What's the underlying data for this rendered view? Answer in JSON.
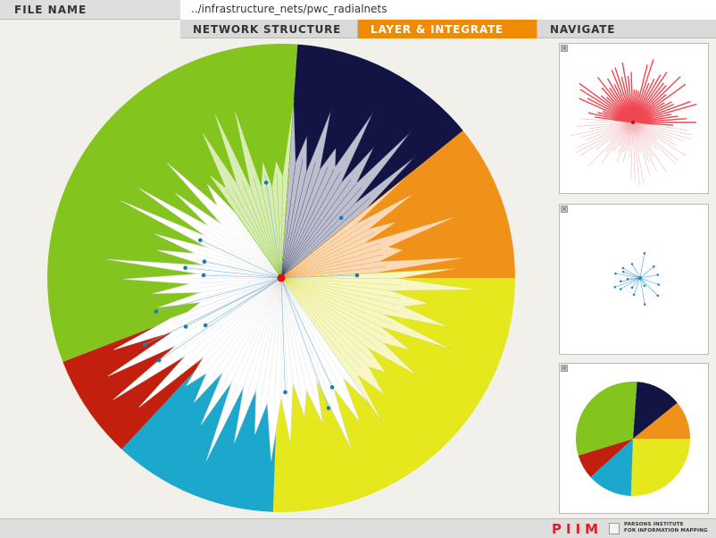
{
  "header": {
    "file_label": "FILE NAME",
    "file_path": "../infrastructure_nets/pwc_radialnets"
  },
  "tabs": [
    {
      "label": "NETWORK STRUCTURE",
      "active": false
    },
    {
      "label": "LAYER & INTEGRATE",
      "active": true
    },
    {
      "label": "NAVIGATE",
      "active": false
    }
  ],
  "colors": {
    "accent": "#f08a00",
    "navy": "#121544",
    "orange": "#f0921a",
    "yellow": "#e4e81c",
    "cyan": "#1ca8cc",
    "red": "#c21f0e",
    "green": "#84c41e",
    "center_node": "#e01010",
    "thumb_star": "#f04650",
    "thumb_nodes": "#1a8ac8"
  },
  "icons": {
    "thumb_close": "close-icon"
  },
  "footer": {
    "logo_text": "PIIM",
    "org_line1": "PARSONS INSTITUTE",
    "org_line2": "FOR INFORMATION MAPPING"
  }
}
